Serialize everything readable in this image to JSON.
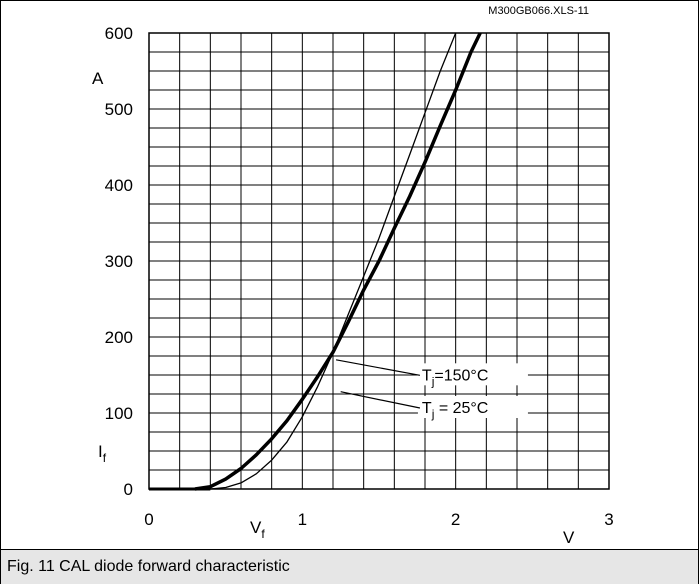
{
  "header": {
    "file_id": "M300GB066.XLS-11"
  },
  "caption": "Fig. 11 CAL diode forward characteristic",
  "chart_data": {
    "type": "line",
    "title": "",
    "x_axis": {
      "min": 0,
      "max": 3,
      "ticks": [
        "0",
        "1",
        "2",
        "3"
      ],
      "label_symbol": "V",
      "label_subscript": "f",
      "unit": "V",
      "grid": true
    },
    "y_axis": {
      "min": 0,
      "max": 600,
      "ticks": [
        "0",
        "100",
        "200",
        "300",
        "400",
        "500",
        "600"
      ],
      "label_symbol": "I",
      "label_subscript": "f",
      "unit": "A",
      "grid": true
    },
    "series": [
      {
        "name": "Tj=150°C",
        "label_main": "T",
        "label_sub": "j",
        "label_rest": "=150°C",
        "stroke": "thick",
        "x": [
          0.3,
          0.4,
          0.5,
          0.6,
          0.7,
          0.8,
          0.9,
          1.0,
          1.1,
          1.2,
          1.3,
          1.4,
          1.5,
          1.6,
          1.7,
          1.8,
          1.9,
          2.0,
          2.1,
          2.16
        ],
        "y": [
          0,
          3,
          13,
          27,
          45,
          66,
          90,
          118,
          148,
          180,
          220,
          262,
          300,
          343,
          385,
          430,
          478,
          525,
          575,
          600
        ]
      },
      {
        "name": "Tj = 25°C",
        "label_main": "T",
        "label_sub": "j",
        "label_rest": " = 25°C",
        "stroke": "thin",
        "x": [
          0.4,
          0.5,
          0.6,
          0.7,
          0.8,
          0.9,
          1.0,
          1.1,
          1.2,
          1.3,
          1.4,
          1.5,
          1.6,
          1.7,
          1.8,
          1.9,
          2.0
        ],
        "y": [
          0,
          2,
          8,
          20,
          38,
          62,
          95,
          135,
          180,
          230,
          280,
          330,
          385,
          440,
          495,
          550,
          600
        ]
      }
    ],
    "legend": [
      {
        "series": "Tj=150°C",
        "pointer_x": 1.22,
        "pointer_y": 170,
        "label_x": 1.78,
        "label_y": 143
      },
      {
        "series": "Tj = 25°C",
        "pointer_x": 1.25,
        "pointer_y": 128,
        "label_x": 1.78,
        "label_y": 100
      }
    ]
  }
}
